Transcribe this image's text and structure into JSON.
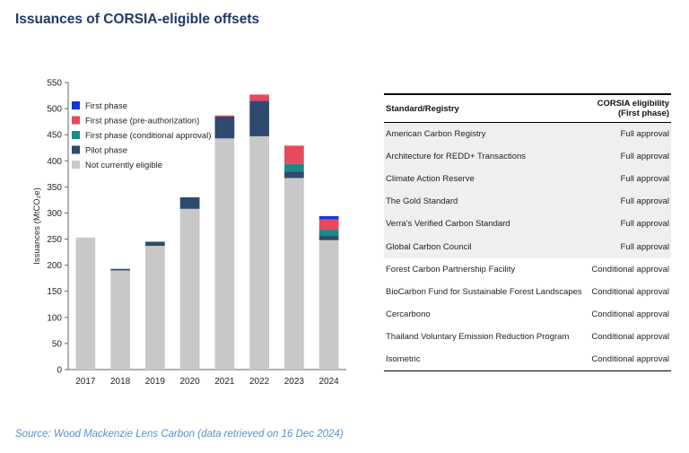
{
  "title": "Issuances of CORSIA-eligible offsets",
  "source": "Source: Wood Mackenzie Lens Carbon (data retrieved on 16 Dec 2024)",
  "colors": {
    "not_eligible": "#c8c8c8",
    "pilot": "#2e4a6e",
    "conditional": "#1a8a8a",
    "pre_auth": "#e8495d",
    "first_phase": "#1433e6"
  },
  "chart_data": {
    "type": "bar",
    "stacked": true,
    "categories": [
      "2017",
      "2018",
      "2019",
      "2020",
      "2021",
      "2022",
      "2023",
      "2024"
    ],
    "ylabel": "Issuances (MtCO₂e)",
    "ylim": [
      0,
      550
    ],
    "yticks": [
      0,
      50,
      100,
      150,
      200,
      250,
      300,
      350,
      400,
      450,
      500,
      550
    ],
    "legend_position": "top-left",
    "series": [
      {
        "name": "Not currently eligible",
        "color": "#c8c8c8",
        "values": [
          253,
          190,
          237,
          308,
          443,
          447,
          367,
          248
        ]
      },
      {
        "name": "Pilot phase",
        "color": "#2e4a6e",
        "values": [
          0,
          3,
          8,
          22,
          42,
          68,
          12,
          8
        ]
      },
      {
        "name": "First phase (conditional approval)",
        "color": "#1a8a8a",
        "values": [
          0,
          0,
          0,
          0,
          0,
          0,
          15,
          12
        ]
      },
      {
        "name": "First phase (pre-authorization)",
        "color": "#e8495d",
        "values": [
          0,
          0,
          0,
          0,
          2,
          12,
          35,
          20
        ]
      },
      {
        "name": "First phase",
        "color": "#1433e6",
        "values": [
          0,
          0,
          0,
          0,
          0,
          0,
          0,
          6
        ]
      }
    ]
  },
  "table": {
    "header": {
      "col1": "Standard/Registry",
      "col2_line1": "CORSIA eligibility",
      "col2_line2": "(First phase)"
    },
    "rows": [
      {
        "name": "American Carbon Registry",
        "status": "Full approval"
      },
      {
        "name": "Architecture for REDD+ Transactions",
        "status": "Full approval"
      },
      {
        "name": "Climate Action Reserve",
        "status": "Full approval"
      },
      {
        "name": "The Gold Standard",
        "status": "Full approval"
      },
      {
        "name": "Verra's Verified Carbon Standard",
        "status": "Full approval"
      },
      {
        "name": "Global Carbon Council",
        "status": "Full approval"
      },
      {
        "name": "Forest Carbon Partnership Facility",
        "status": "Conditional approval"
      },
      {
        "name": "BioCarbon Fund for Sustainable Forest Landscapes",
        "status": "Conditional approval"
      },
      {
        "name": "Cercarbono",
        "status": "Conditional approval"
      },
      {
        "name": "Thailand Voluntary Emission Reduction Program",
        "status": "Conditional approval"
      },
      {
        "name": "Isometric",
        "status": "Conditional approval"
      }
    ]
  }
}
